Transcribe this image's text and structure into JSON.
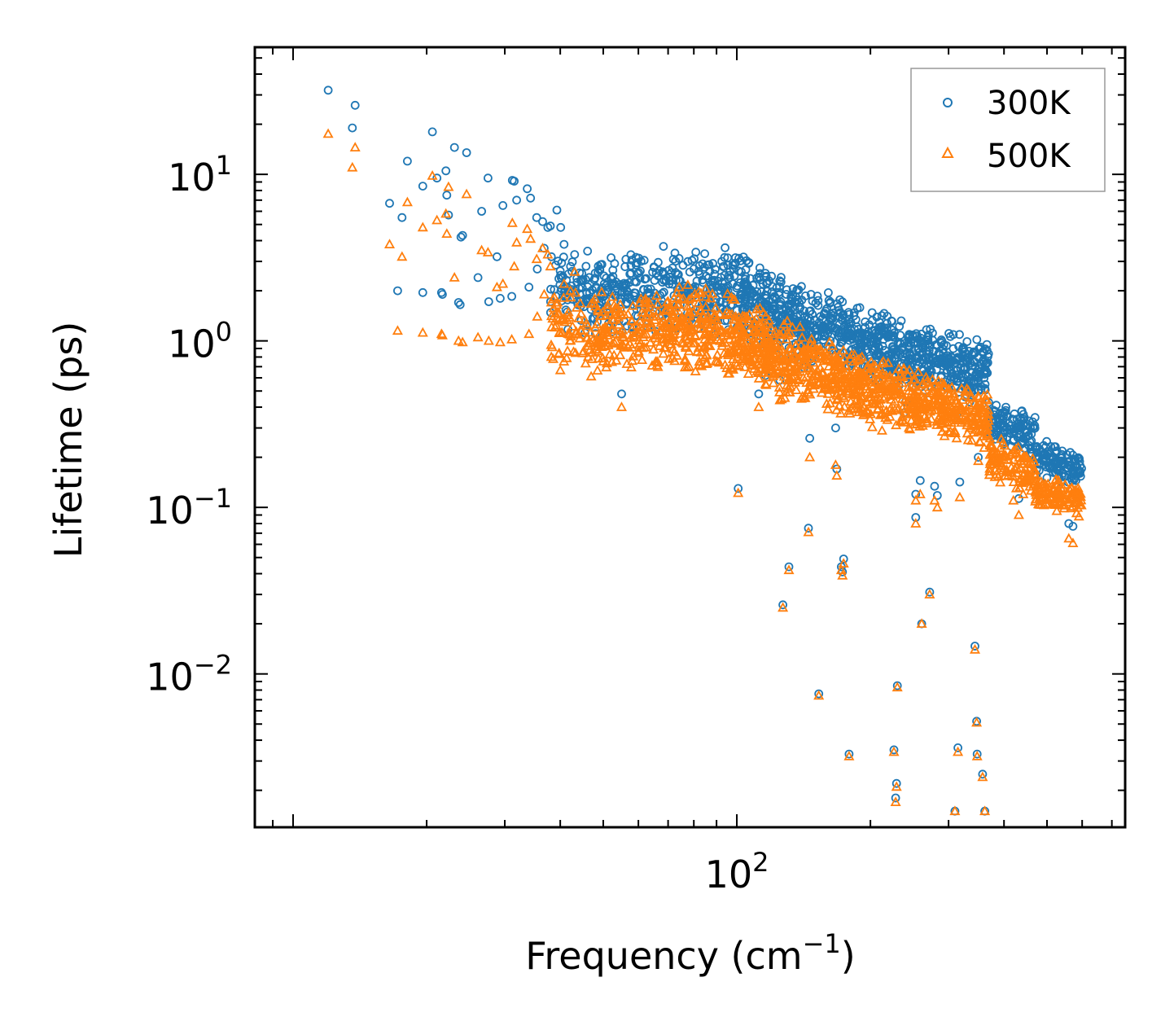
{
  "chart_data": {
    "type": "scatter",
    "title": "",
    "xlabel": "Frequency (cm",
    "xlabel_sup": "−1",
    "xlabel_suffix": ")",
    "ylabel": "Lifetime (ps)",
    "xscale": "log",
    "yscale": "log",
    "xlim": [
      8.2,
      750
    ],
    "ylim": [
      0.0012,
      58
    ],
    "x_ticks": [
      {
        "value": 100,
        "base": "10",
        "exp": "2"
      }
    ],
    "y_ticks": [
      {
        "value": 10,
        "base": "10",
        "exp": "1"
      },
      {
        "value": 1,
        "base": "10",
        "exp": "0"
      },
      {
        "value": 0.1,
        "base": "10",
        "exp": "−1"
      },
      {
        "value": 0.01,
        "base": "10",
        "exp": "−2"
      }
    ],
    "legend": {
      "position": "top-right",
      "entries": [
        "300K",
        "500K"
      ]
    },
    "colors": {
      "300K": "#1f77b4",
      "500K": "#ff7f0e",
      "frame": "#000000",
      "legend_border": "#999999"
    },
    "series": [
      {
        "name": "300K",
        "marker": "circle",
        "points": [
          [
            12,
            32
          ],
          [
            13.6,
            19
          ],
          [
            13.8,
            26
          ],
          [
            16.5,
            6.7
          ],
          [
            17.6,
            5.5
          ],
          [
            18.1,
            12
          ],
          [
            19.6,
            8.5
          ],
          [
            20.6,
            18
          ],
          [
            21.1,
            9.5
          ],
          [
            22.1,
            10.5
          ],
          [
            22.2,
            7.5
          ],
          [
            22.4,
            5.7
          ],
          [
            23.1,
            14.5
          ],
          [
            24.6,
            13.5
          ],
          [
            26.6,
            6
          ],
          [
            27.5,
            9.5
          ],
          [
            28.8,
            3.2
          ],
          [
            29.7,
            6.5
          ],
          [
            31.2,
            9.2
          ],
          [
            31.5,
            9.1
          ],
          [
            31.9,
            7
          ],
          [
            33.7,
            8.2
          ],
          [
            34.3,
            7.2
          ],
          [
            35.4,
            5.5
          ],
          [
            36.5,
            5.2
          ],
          [
            37.5,
            4.8
          ],
          [
            38,
            4.9
          ],
          [
            39.3,
            6.1
          ],
          [
            40.1,
            4.8
          ],
          [
            17.2,
            2
          ],
          [
            19.6,
            1.95
          ],
          [
            21.6,
            1.95
          ],
          [
            21.7,
            1.9
          ],
          [
            23.6,
            1.7
          ],
          [
            23.8,
            1.65
          ],
          [
            23.9,
            4.2
          ],
          [
            24.1,
            4.3
          ],
          [
            26.1,
            2.4
          ],
          [
            27.6,
            1.72
          ],
          [
            29.3,
            1.8
          ],
          [
            31.1,
            1.85
          ],
          [
            34,
            2.1
          ],
          [
            35.5,
            2.7
          ],
          [
            36.8,
            3.6
          ],
          [
            38.2,
            3.2
          ],
          [
            40.8,
            3.8
          ],
          [
            42.2,
            2.8
          ],
          [
            43.1,
            3.3
          ],
          [
            55,
            0.48
          ],
          [
            100.7,
            0.13
          ],
          [
            112,
            0.48
          ],
          [
            116,
            0.62
          ],
          [
            125,
            0.58
          ],
          [
            127,
            0.026
          ],
          [
            131,
            0.044
          ],
          [
            145,
            0.075
          ],
          [
            146,
            0.26
          ],
          [
            153,
            0.0076
          ],
          [
            167,
            0.3
          ],
          [
            168,
            0.17
          ],
          [
            172,
            0.044
          ],
          [
            173,
            0.041
          ],
          [
            174,
            0.049
          ],
          [
            179,
            0.0033
          ],
          [
            197,
            0.7
          ],
          [
            210,
            1.08
          ],
          [
            219,
            1.05
          ],
          [
            226,
            0.0035
          ],
          [
            228,
            0.0018
          ],
          [
            229,
            0.0022
          ],
          [
            230,
            0.0085
          ],
          [
            238,
            0.37
          ],
          [
            240,
            0.43
          ],
          [
            253,
            0.12
          ],
          [
            253,
            0.087
          ],
          [
            259,
            0.145
          ],
          [
            261,
            0.02
          ],
          [
            263,
            0.46
          ],
          [
            272,
            0.031
          ],
          [
            279,
            0.134
          ],
          [
            283,
            0.118
          ],
          [
            302,
            0.77
          ],
          [
            310,
            0.0015
          ],
          [
            313,
            0.36
          ],
          [
            315,
            0.0036
          ],
          [
            318,
            0.142
          ],
          [
            335,
            0.43
          ],
          [
            344,
            0.0147
          ],
          [
            347,
            0.0052
          ],
          [
            348,
            0.0033
          ],
          [
            350,
            0.2
          ],
          [
            358,
            0.0025
          ],
          [
            362,
            0.0015
          ],
          [
            432,
            0.113
          ],
          [
            442,
            0.26
          ],
          [
            560,
            0.08
          ],
          [
            572,
            0.077
          ]
        ],
        "bands": [
          {
            "x": [
              38,
              48
            ],
            "y": [
              2.0,
              2.0
            ],
            "spread": 2.0,
            "n": 80
          },
          {
            "x": [
              48,
              100
            ],
            "y": [
              2.0,
              2.0
            ],
            "spread": 1.9,
            "n": 350
          },
          {
            "x": [
              100,
              150
            ],
            "y": [
              2.0,
              1.1
            ],
            "spread": 1.85,
            "n": 300
          },
          {
            "x": [
              150,
              250
            ],
            "y": [
              1.25,
              0.78
            ],
            "spread": 1.7,
            "n": 330
          },
          {
            "x": [
              250,
              370
            ],
            "y": [
              0.82,
              0.65
            ],
            "spread": 1.6,
            "n": 260
          },
          {
            "x": [
              370,
              470
            ],
            "y": [
              0.34,
              0.27
            ],
            "spread": 1.4,
            "n": 120
          },
          {
            "x": [
              470,
              600
            ],
            "y": [
              0.2,
              0.17
            ],
            "spread": 1.35,
            "n": 120
          }
        ]
      },
      {
        "name": "500K",
        "marker": "triangle",
        "points": [
          [
            12,
            17.5
          ],
          [
            13.6,
            11
          ],
          [
            13.8,
            14.5
          ],
          [
            16.5,
            3.8
          ],
          [
            17.6,
            3.2
          ],
          [
            18.1,
            6.8
          ],
          [
            19.6,
            4.8
          ],
          [
            20.6,
            9.8
          ],
          [
            21.1,
            5.3
          ],
          [
            22.1,
            5.8
          ],
          [
            22.2,
            4.4
          ],
          [
            22.4,
            8.4
          ],
          [
            23.1,
            2.4
          ],
          [
            24.6,
            7.6
          ],
          [
            26.6,
            3.5
          ],
          [
            27.5,
            3.4
          ],
          [
            28.8,
            2.1
          ],
          [
            29.7,
            2.2
          ],
          [
            31.2,
            5.1
          ],
          [
            31.5,
            2.8
          ],
          [
            31.9,
            3.9
          ],
          [
            33.7,
            4.7
          ],
          [
            34.3,
            4.1
          ],
          [
            35.4,
            3.1
          ],
          [
            36.5,
            3.6
          ],
          [
            37.5,
            3.3
          ],
          [
            38,
            2.8
          ],
          [
            17.2,
            1.15
          ],
          [
            19.6,
            1.12
          ],
          [
            21.6,
            1.1
          ],
          [
            21.7,
            1.08
          ],
          [
            23.6,
            1.0
          ],
          [
            24.1,
            0.98
          ],
          [
            26.1,
            1.05
          ],
          [
            27.6,
            1.0
          ],
          [
            29.3,
            0.98
          ],
          [
            31.1,
            1.02
          ],
          [
            34,
            1.1
          ],
          [
            35.5,
            1.4
          ],
          [
            36.8,
            1.9
          ],
          [
            38.2,
            1.7
          ],
          [
            40.8,
            2.2
          ],
          [
            42.2,
            2.0
          ],
          [
            43.1,
            2.6
          ],
          [
            55,
            0.4
          ],
          [
            100.7,
            0.122
          ],
          [
            112,
            0.4
          ],
          [
            116,
            0.55
          ],
          [
            125,
            0.44
          ],
          [
            127,
            0.025
          ],
          [
            131,
            0.042
          ],
          [
            145,
            0.071
          ],
          [
            146,
            0.2
          ],
          [
            153,
            0.0074
          ],
          [
            167,
            0.18
          ],
          [
            168,
            0.155
          ],
          [
            172,
            0.042
          ],
          [
            173,
            0.039
          ],
          [
            174,
            0.046
          ],
          [
            179,
            0.0032
          ],
          [
            210,
            0.42
          ],
          [
            219,
            0.5
          ],
          [
            226,
            0.0034
          ],
          [
            228,
            0.0017
          ],
          [
            229,
            0.0021
          ],
          [
            230,
            0.0083
          ],
          [
            240,
            0.39
          ],
          [
            253,
            0.11
          ],
          [
            253,
            0.08
          ],
          [
            259,
            0.12
          ],
          [
            261,
            0.02
          ],
          [
            263,
            0.4
          ],
          [
            272,
            0.03
          ],
          [
            279,
            0.11
          ],
          [
            283,
            0.1
          ],
          [
            302,
            0.48
          ],
          [
            310,
            0.0015
          ],
          [
            313,
            0.26
          ],
          [
            315,
            0.0034
          ],
          [
            318,
            0.115
          ],
          [
            335,
            0.3
          ],
          [
            344,
            0.014
          ],
          [
            347,
            0.0051
          ],
          [
            348,
            0.0032
          ],
          [
            350,
            0.19
          ],
          [
            358,
            0.0024
          ],
          [
            362,
            0.0015
          ],
          [
            420,
            0.11
          ],
          [
            432,
            0.09
          ],
          [
            442,
            0.12
          ],
          [
            560,
            0.065
          ],
          [
            572,
            0.061
          ]
        ],
        "bands": [
          {
            "x": [
              38,
              48
            ],
            "y": [
              1.1,
              1.1
            ],
            "spread": 1.9,
            "n": 80
          },
          {
            "x": [
              48,
              70
            ],
            "y": [
              1.1,
              1.15
            ],
            "spread": 1.9,
            "n": 180
          },
          {
            "x": [
              70,
              100
            ],
            "y": [
              1.2,
              1.1
            ],
            "spread": 1.9,
            "n": 220
          },
          {
            "x": [
              100,
              150
            ],
            "y": [
              1.1,
              0.62
            ],
            "spread": 1.8,
            "n": 300
          },
          {
            "x": [
              150,
              250
            ],
            "y": [
              0.65,
              0.42
            ],
            "spread": 1.7,
            "n": 330
          },
          {
            "x": [
              250,
              370
            ],
            "y": [
              0.43,
              0.34
            ],
            "spread": 1.55,
            "n": 260
          },
          {
            "x": [
              370,
              470
            ],
            "y": [
              0.2,
              0.16
            ],
            "spread": 1.4,
            "n": 120
          },
          {
            "x": [
              470,
              600
            ],
            "y": [
              0.125,
              0.11
            ],
            "spread": 1.3,
            "n": 120
          }
        ]
      }
    ]
  }
}
